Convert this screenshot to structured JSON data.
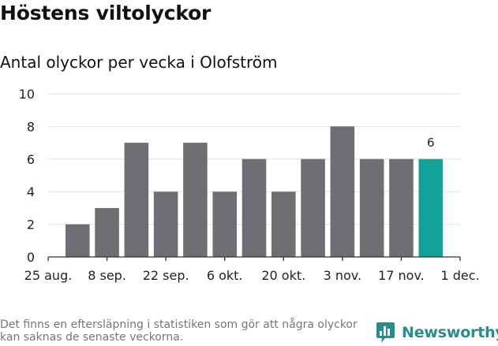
{
  "header": {
    "title": "Höstens viltolyckor",
    "subtitle": "Antal olyckor per vecka i Olofström"
  },
  "chart_data": {
    "type": "bar",
    "title": "Höstens viltolyckor",
    "subtitle": "Antal olyckor per vecka i Olofström",
    "xlabel": "",
    "ylabel": "",
    "ylim": [
      0,
      10
    ],
    "yticks": [
      0,
      2,
      4,
      6,
      8,
      10
    ],
    "xticks": [
      {
        "label": "25 aug.",
        "week": 0
      },
      {
        "label": "8 sep.",
        "week": 2
      },
      {
        "label": "22 sep.",
        "week": 4
      },
      {
        "label": "6 okt.",
        "week": 6
      },
      {
        "label": "20 okt.",
        "week": 8
      },
      {
        "label": "3 nov.",
        "week": 10
      },
      {
        "label": "17 nov.",
        "week": 12
      },
      {
        "label": "1 dec.",
        "week": 14
      }
    ],
    "weeks": [
      1,
      2,
      3,
      4,
      5,
      6,
      7,
      8,
      9,
      10,
      11,
      12,
      13
    ],
    "values": [
      2,
      3,
      7,
      4,
      7,
      4,
      6,
      4,
      6,
      8,
      6,
      6,
      6
    ],
    "highlight_index": 12,
    "highlight_label": "6",
    "bar_color": "#6f6f73",
    "highlight_color": "#11a39a",
    "grid": true
  },
  "footer": {
    "note": "Det finns en eftersläpning i statistiken som gör att några olyckor kan saknas de senaste veckorna.",
    "brand": "Newsworthy",
    "brand_color": "#2a8c8a"
  }
}
